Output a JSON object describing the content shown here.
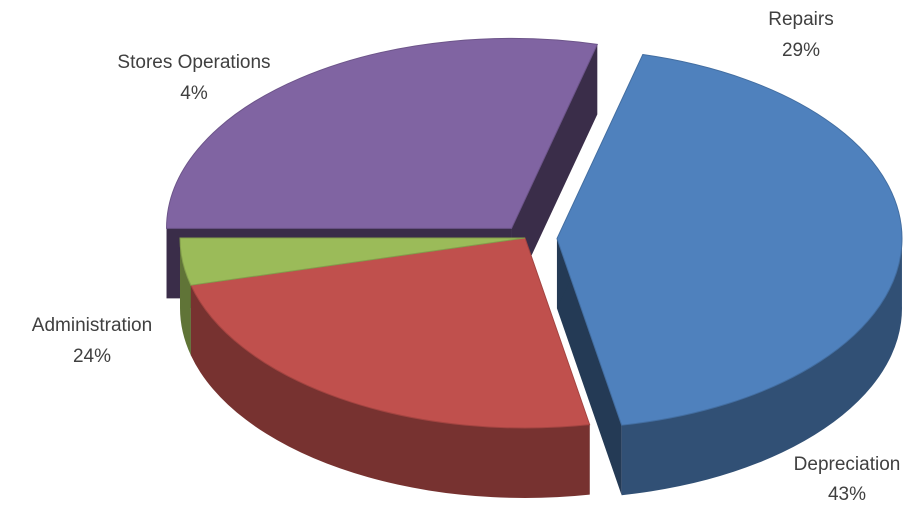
{
  "chart_data": {
    "type": "pie",
    "title": "",
    "slices": [
      {
        "label": "Depreciation",
        "percent_label": "43%",
        "value": 43,
        "color": "#4f81bd"
      },
      {
        "label": "Administration",
        "percent_label": "24%",
        "value": 24,
        "color": "#c0504d"
      },
      {
        "label": "Stores Operations",
        "percent_label": "4%",
        "value": 4,
        "color": "#9bbb59"
      },
      {
        "label": "Repairs",
        "percent_label": "29%",
        "value": 29,
        "color": "#8064a2"
      }
    ],
    "style": "3d-exploded",
    "legend": "none"
  }
}
